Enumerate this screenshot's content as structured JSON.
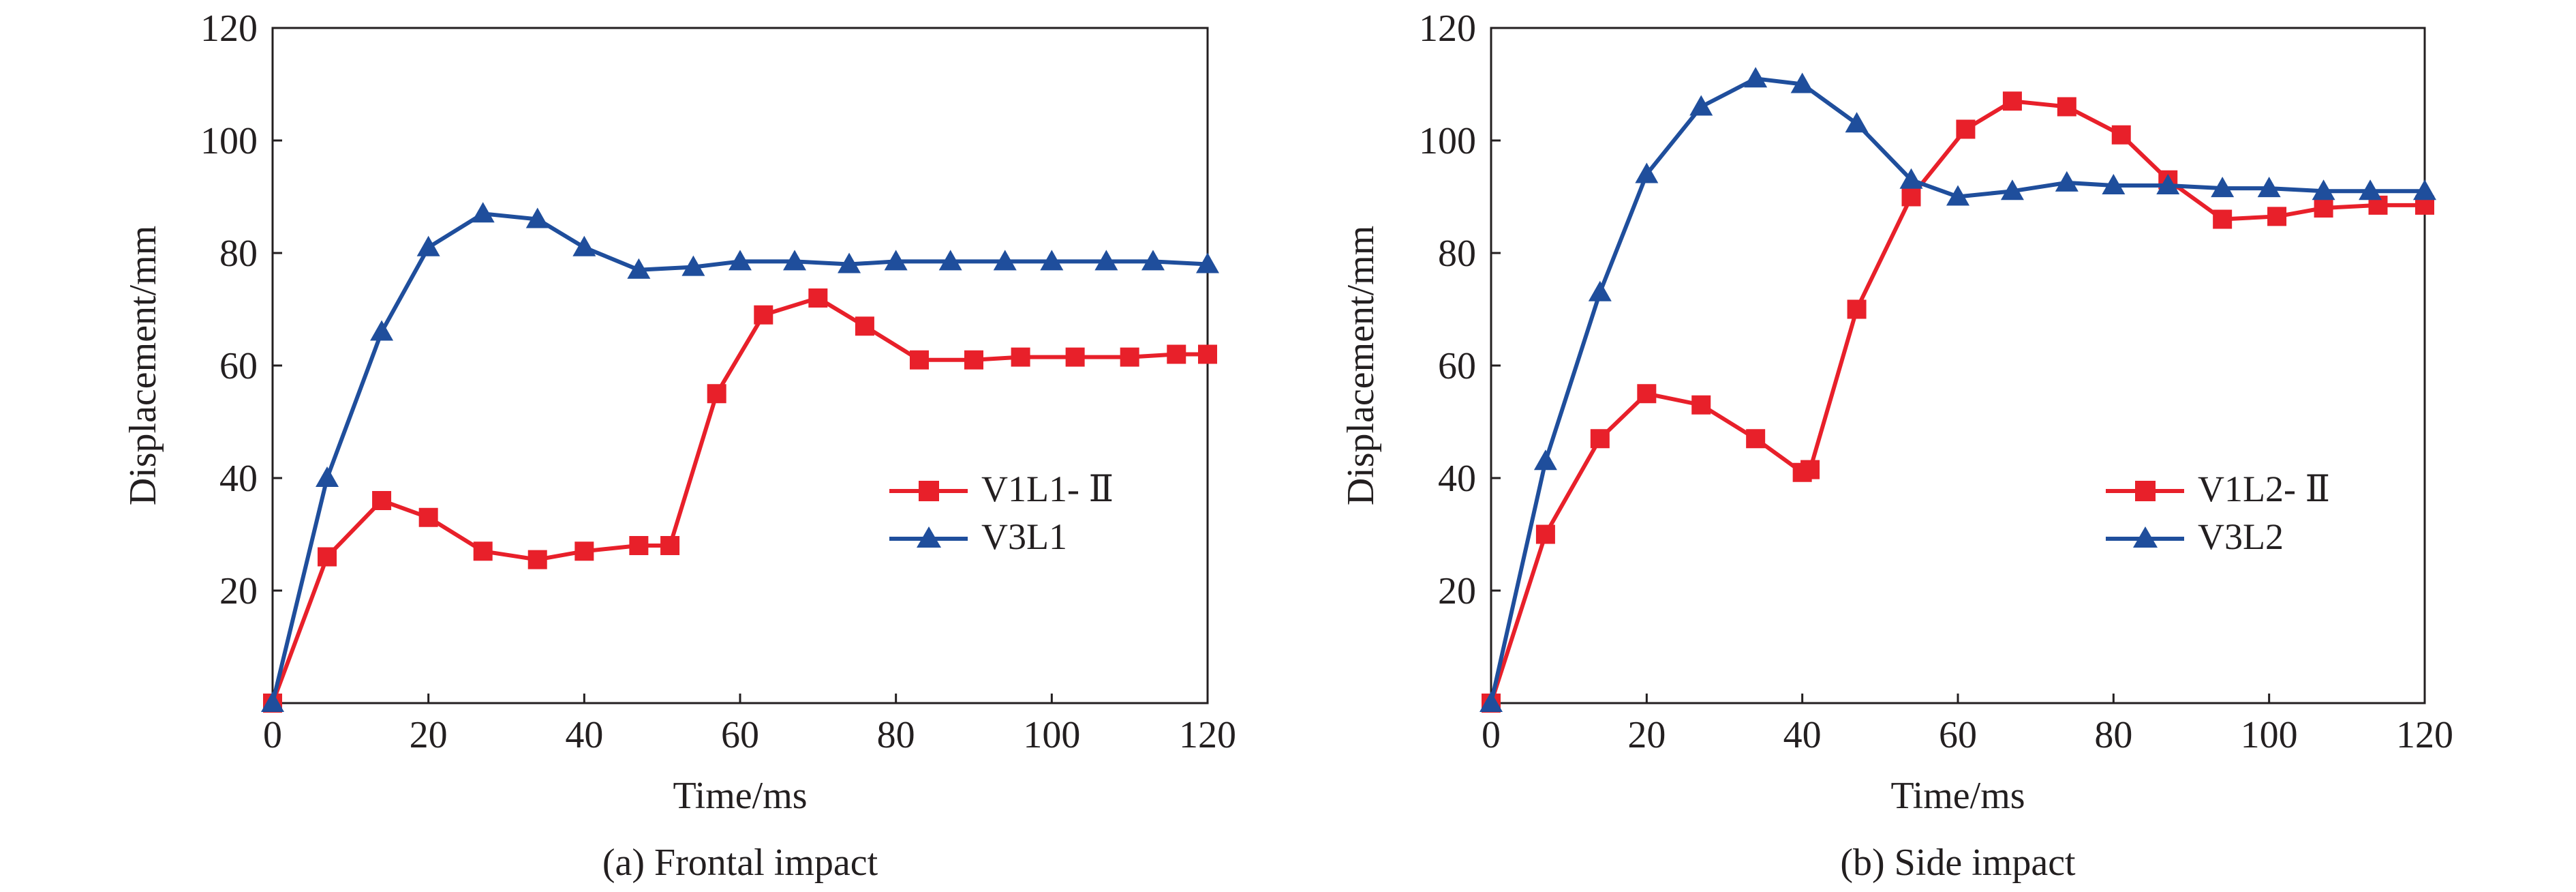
{
  "chart_data": [
    {
      "type": "line",
      "caption": "(a) Frontal impact",
      "xlabel": "Time/ms",
      "ylabel": "Displacement/mm",
      "xlim": [
        0,
        120
      ],
      "ylim": [
        0,
        120
      ],
      "xticks": [
        "0",
        "20",
        "40",
        "60",
        "80",
        "100",
        "120"
      ],
      "yticks": [
        "20",
        "40",
        "60",
        "80",
        "100",
        "120"
      ],
      "grid": false,
      "legend_position": "center-right",
      "series": [
        {
          "name": "V1L1- Ⅱ",
          "color": "#e8202a",
          "marker": "square",
          "x": [
            0,
            7,
            14,
            20,
            27,
            34,
            40,
            47,
            51,
            57,
            63,
            70,
            76,
            83,
            90,
            96,
            103,
            110,
            116,
            120
          ],
          "y": [
            0,
            26,
            36,
            33,
            27,
            25.5,
            27,
            28,
            28,
            55,
            69,
            72,
            67,
            61,
            61,
            61.5,
            61.5,
            61.5,
            62,
            62
          ]
        },
        {
          "name": "V3L1",
          "color": "#1f4e9c",
          "marker": "triangle",
          "x": [
            0,
            7,
            14,
            20,
            27,
            34,
            40,
            47,
            54,
            60,
            67,
            74,
            80,
            87,
            94,
            100,
            107,
            113,
            120
          ],
          "y": [
            0,
            40,
            66,
            81,
            87,
            86,
            81,
            77,
            77.5,
            78.5,
            78.5,
            78,
            78.5,
            78.5,
            78.5,
            78.5,
            78.5,
            78.5,
            78
          ]
        }
      ]
    },
    {
      "type": "line",
      "caption": "(b) Side impact",
      "xlabel": "Time/ms",
      "ylabel": "Displacement/mm",
      "xlim": [
        0,
        120
      ],
      "ylim": [
        0,
        120
      ],
      "xticks": [
        "0",
        "20",
        "40",
        "60",
        "80",
        "100",
        "120"
      ],
      "yticks": [
        "20",
        "40",
        "60",
        "80",
        "100",
        "120"
      ],
      "grid": false,
      "legend_position": "center-right",
      "series": [
        {
          "name": "V1L2- Ⅱ",
          "color": "#e8202a",
          "marker": "square",
          "x": [
            0,
            7,
            14,
            20,
            27,
            34,
            40,
            41,
            47,
            54,
            61,
            67,
            74,
            81,
            87,
            94,
            101,
            107,
            114,
            120
          ],
          "y": [
            0,
            30,
            47,
            55,
            53,
            47,
            41,
            41.5,
            70,
            90,
            102,
            107,
            106,
            101,
            93,
            86,
            86.5,
            88,
            88.5,
            88.5
          ]
        },
        {
          "name": "V3L2",
          "color": "#1f4e9c",
          "marker": "triangle",
          "x": [
            0,
            7,
            14,
            20,
            27,
            34,
            40,
            47,
            54,
            60,
            67,
            74,
            80,
            87,
            94,
            100,
            107,
            113,
            120
          ],
          "y": [
            0,
            43,
            73,
            94,
            106,
            111,
            110,
            103,
            93,
            90,
            91,
            92.5,
            92,
            92,
            91.5,
            91.5,
            91,
            91,
            91
          ]
        }
      ]
    }
  ]
}
